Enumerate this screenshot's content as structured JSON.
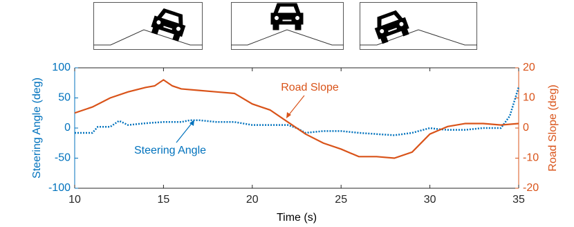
{
  "chart_data": {
    "type": "line",
    "xlabel": "Time (s)",
    "ylabel": "Steering Angle (deg)",
    "y2label": "Road Slope (deg)",
    "annotations": [
      "Road Slope",
      "Steering Angle"
    ],
    "xlim": [
      10,
      35
    ],
    "xticks": [
      10,
      15,
      20,
      25,
      30,
      35
    ],
    "ylim": [
      -100,
      100
    ],
    "yticks": [
      -100,
      -50,
      0,
      50,
      100
    ],
    "y2lim": [
      -20,
      20
    ],
    "y2ticks": [
      -20,
      -10,
      0,
      10,
      20
    ],
    "series": [
      {
        "name": "Steering Angle",
        "color": "#0072bd",
        "style": "dotted",
        "x": [
          10,
          11,
          11.3,
          12,
          12.5,
          13,
          14,
          15,
          16,
          16.5,
          17,
          18,
          19,
          20,
          21,
          22,
          22.5,
          23,
          24,
          25,
          26,
          27,
          28,
          29,
          30,
          30.5,
          31,
          32,
          33,
          34,
          34.5,
          35
        ],
        "values": [
          -8,
          -8,
          2,
          2,
          12,
          5,
          8,
          10,
          10,
          13,
          13,
          10,
          10,
          5,
          5,
          5,
          0,
          -8,
          -5,
          -5,
          -8,
          -10,
          -12,
          -8,
          0,
          -2,
          -3,
          -3,
          0,
          0,
          20,
          68
        ]
      },
      {
        "name": "Road Slope",
        "color": "#d95319",
        "style": "solid",
        "axis": "y2",
        "x": [
          10,
          11,
          12,
          13,
          14,
          14.5,
          15,
          15.5,
          16,
          17,
          18,
          19,
          20,
          21,
          22,
          23,
          24,
          25,
          26,
          27,
          28,
          29,
          30,
          31,
          32,
          33,
          34,
          35
        ],
        "values": [
          5,
          7,
          10,
          12,
          13.5,
          14,
          16,
          14,
          13,
          12.5,
          12,
          11.5,
          8,
          6,
          2,
          -2,
          -5,
          -7,
          -9.5,
          -9.5,
          -10,
          -8,
          -2,
          0.5,
          1.5,
          1.5,
          1,
          1.5
        ]
      }
    ]
  }
}
